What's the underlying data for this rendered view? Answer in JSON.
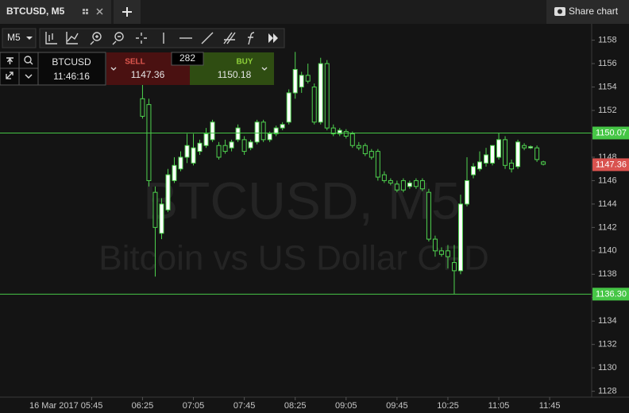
{
  "tab": {
    "title": "BTCUSD, M5"
  },
  "share_button": "Share chart",
  "toolbar": {
    "timeframe": "M5"
  },
  "trade_panel": {
    "symbol": "BTCUSD",
    "time": "11:46:16",
    "sell_label": "SELL",
    "sell_price": "1147.36",
    "spread": "282",
    "buy_label": "BUY",
    "buy_price": "1150.18"
  },
  "chart_data": {
    "type": "candlestick",
    "watermark_title": "BTCUSD, M5",
    "watermark_subtitle": "Bitcoin vs US Dollar CFD",
    "x": [
      "06:25",
      "06:30",
      "06:35",
      "06:40",
      "06:45",
      "06:50",
      "06:55",
      "07:00",
      "07:05",
      "07:10",
      "07:15",
      "07:20",
      "07:25",
      "07:30",
      "07:35",
      "07:40",
      "07:45",
      "07:50",
      "07:55",
      "08:00",
      "08:05",
      "08:10",
      "08:15",
      "08:20",
      "08:25",
      "08:30",
      "08:35",
      "08:40",
      "08:45",
      "08:50",
      "08:55",
      "09:00",
      "09:05",
      "09:10",
      "09:15",
      "09:20",
      "09:25",
      "09:30",
      "09:35",
      "09:40",
      "09:45",
      "09:50",
      "09:55",
      "10:00",
      "10:05",
      "10:10",
      "10:15",
      "10:20",
      "10:25",
      "10:30",
      "10:35",
      "10:40",
      "10:45",
      "10:50",
      "10:55",
      "11:00",
      "11:05",
      "11:10",
      "11:15",
      "11:20",
      "11:25",
      "11:30",
      "11:35",
      "11:40"
    ],
    "open": [
      1153,
      1152.5,
      1145,
      1141.5,
      1143.5,
      1146,
      1147,
      1148,
      1147.5,
      1148.5,
      1149,
      1149.5,
      1149,
      1149,
      1148.8,
      1149.5,
      1149.5,
      1148.8,
      1149.3,
      1151,
      1149.5,
      1150,
      1150.5,
      1151,
      1153.5,
      1154,
      1155,
      1154,
      1151,
      1156,
      1150.5,
      1150,
      1150.2,
      1150,
      1149,
      1149,
      1148.5,
      1148.5,
      1146.5,
      1146,
      1145.7,
      1146,
      1145.5,
      1146,
      1146,
      1145,
      1141,
      1140,
      1140,
      1139,
      1138.3,
      1144,
      1146.5,
      1147,
      1147.5,
      1147.5,
      1148,
      1149.5,
      1147.5,
      1147.2,
      1149,
      1148.8,
      1148.8,
      1147.6
    ],
    "high": [
      1154.2,
      1153,
      1145.5,
      1144.5,
      1147,
      1148,
      1148.5,
      1150,
      1150,
      1149.5,
      1150.5,
      1151.2,
      1149.3,
      1149.5,
      1149.5,
      1150.8,
      1149.8,
      1149.5,
      1151.2,
      1151.2,
      1150.2,
      1150.7,
      1151,
      1153.8,
      1157,
      1155.3,
      1156,
      1154.3,
      1156.5,
      1156.3,
      1150.8,
      1150.5,
      1150.4,
      1150.2,
      1149.3,
      1149.2,
      1148.7,
      1148.7,
      1146.8,
      1146.2,
      1146,
      1146.2,
      1146,
      1146.2,
      1146.2,
      1145.3,
      1141.3,
      1140.3,
      1140.5,
      1140.5,
      1144.8,
      1148,
      1147.5,
      1148.5,
      1148.8,
      1149,
      1150.1,
      1149.8,
      1147.8,
      1149.5,
      1149.2,
      1149,
      1149,
      1147.7
    ],
    "low": [
      1151.3,
      1145.5,
      1137.8,
      1141,
      1143.3,
      1145.8,
      1146.8,
      1147.5,
      1147.3,
      1148.2,
      1148.8,
      1149.3,
      1147.8,
      1148.3,
      1148.5,
      1149.3,
      1148.2,
      1148.6,
      1149.1,
      1149.3,
      1149.3,
      1149.8,
      1150.3,
      1150.8,
      1153,
      1153.5,
      1154.3,
      1150.8,
      1150.8,
      1150.3,
      1149.8,
      1149.8,
      1149.6,
      1148.8,
      1148.6,
      1148.1,
      1147.8,
      1146,
      1145.8,
      1145.6,
      1145,
      1145,
      1145.3,
      1145.3,
      1145.1,
      1140.8,
      1139.5,
      1139.5,
      1138.5,
      1136.3,
      1138,
      1143.8,
      1146.2,
      1146.8,
      1147.2,
      1147.3,
      1147.8,
      1147,
      1146.7,
      1147,
      1148.6,
      1148.7,
      1147.6,
      1147.3
    ],
    "close": [
      1151.5,
      1146,
      1142,
      1144,
      1146.5,
      1147.3,
      1148,
      1149,
      1148.8,
      1149.2,
      1150,
      1151,
      1148,
      1148.5,
      1149.3,
      1150.5,
      1148.5,
      1149.3,
      1151,
      1149.5,
      1150,
      1150.5,
      1150.8,
      1153.5,
      1155.5,
      1155,
      1154.5,
      1151,
      1156,
      1150.5,
      1150,
      1150.3,
      1149.8,
      1149,
      1148.8,
      1148.3,
      1148,
      1146.3,
      1146,
      1145.8,
      1145.2,
      1145.2,
      1145.8,
      1145.5,
      1145.3,
      1141,
      1140,
      1139.7,
      1139.5,
      1138.3,
      1144,
      1146,
      1147.2,
      1147.6,
      1148.2,
      1149,
      1149.5,
      1147.3,
      1147,
      1149.3,
      1148.8,
      1148.9,
      1147.8,
      1147.4
    ],
    "up_color": "#ffffff",
    "down_color": "#141414",
    "wick_color": "#4fd34f",
    "xlim": [
      "04:33",
      "12:18"
    ],
    "xticks": [
      {
        "value": "05:45",
        "label": "16 Mar 2017 05:45"
      },
      "06:25",
      "07:05",
      "07:45",
      "08:25",
      "09:05",
      "09:45",
      "10:25",
      "11:05",
      "11:45"
    ],
    "ylim": [
      1127.5,
      1159.4
    ],
    "yticks": [
      1128,
      1130,
      1132,
      1134,
      1136,
      1138,
      1140,
      1142,
      1144,
      1146,
      1148,
      1150,
      1152,
      1154,
      1156,
      1158
    ],
    "grid": false,
    "price_lines": [
      1150.07,
      {
        "value": 1136.3,
        "label": "1136.30"
      }
    ],
    "price_line_color": "#46c646",
    "last_price": 1147.36,
    "last_price_color": "#d9534f"
  }
}
